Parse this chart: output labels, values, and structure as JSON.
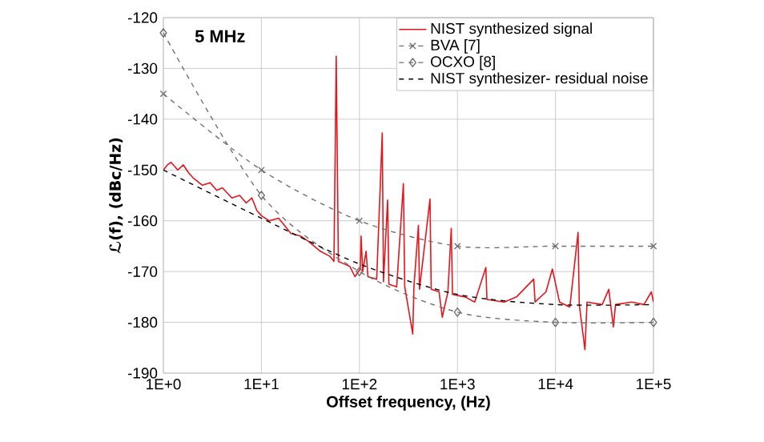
{
  "chart_data": {
    "type": "line",
    "annotations": [
      "5 MHz"
    ],
    "xlabel": "Offset frequency, (Hz)",
    "ylabel": "ℒ(f), (dBc/Hz)",
    "log": "x",
    "xlim": [
      1,
      100000
    ],
    "xticks": [
      {
        "value": 1,
        "label": "1E+0"
      },
      {
        "value": 10,
        "label": "1E+1"
      },
      {
        "value": 100,
        "label": "1E+2"
      },
      {
        "value": 1000,
        "label": "1E+3"
      },
      {
        "value": 10000,
        "label": "1E+4"
      },
      {
        "value": 100000,
        "label": "1E+5"
      }
    ],
    "ylim": [
      -190,
      -120
    ],
    "yticks": [
      -190,
      -180,
      -170,
      -160,
      -150,
      -140,
      -130,
      -120
    ],
    "grid": true,
    "legend": "top right",
    "series": [
      {
        "name": "NIST synthesized signal",
        "color": "#e8141c",
        "marker": "none",
        "line_style": "solid",
        "x": [
          1,
          1.1,
          1.2,
          1.4,
          1.6,
          1.8,
          2,
          2.5,
          3,
          3.5,
          4,
          5,
          6,
          7,
          8,
          9,
          10,
          12,
          15,
          20,
          25,
          30,
          40,
          50,
          55,
          58,
          61,
          70,
          80,
          90,
          102,
          104,
          108,
          117,
          122,
          150,
          171,
          176,
          194,
          200,
          240,
          281,
          290,
          350,
          360,
          400,
          410,
          525,
          540,
          650,
          700,
          800,
          865,
          890,
          1200,
          1500,
          1950,
          2000,
          3000,
          4000,
          6000,
          6200,
          8000,
          9300,
          11000,
          14000,
          17000,
          17500,
          20000,
          21000,
          30000,
          35000,
          39000,
          41000,
          60000,
          80000,
          95000,
          100000
        ],
        "values": [
          -150,
          -149,
          -148.5,
          -150,
          -149,
          -150.5,
          -151.5,
          -153,
          -152.5,
          -154,
          -153.5,
          -155.5,
          -155,
          -156.5,
          -155.5,
          -158,
          -159,
          -160,
          -159.5,
          -162.5,
          -163,
          -164,
          -166,
          -167,
          -168,
          -127.6,
          -168,
          -168.5,
          -169,
          -171,
          -169.5,
          -163,
          -170,
          -166,
          -171,
          -171.5,
          -142.7,
          -172,
          -155.9,
          -172.5,
          -173,
          -152.7,
          -173,
          -182.3,
          -173,
          -160.9,
          -173.5,
          -155.7,
          -173.5,
          -174,
          -179,
          -174,
          -161.5,
          -174.5,
          -175,
          -176,
          -169.2,
          -175.5,
          -176,
          -175,
          -171.5,
          -176,
          -174,
          -169.5,
          -176,
          -177,
          -162.3,
          -176.5,
          -185.4,
          -176,
          -176.5,
          -173.5,
          -180.9,
          -176.5,
          -176,
          -176.5,
          -174,
          -176
        ]
      },
      {
        "name": "BVA [7]",
        "color": "#707070",
        "marker": "cross",
        "line_style": "dashed",
        "x": [
          1,
          10,
          100,
          1000,
          10000,
          100000
        ],
        "values": [
          -135,
          -150,
          -160,
          -165,
          -165,
          -165
        ]
      },
      {
        "name": "OCXO [8]",
        "color": "#707070",
        "marker": "diamond",
        "line_style": "dashed",
        "x": [
          1,
          10,
          100,
          1000,
          10000,
          100000
        ],
        "values": [
          -123,
          -155,
          -170,
          -178,
          -180,
          -180
        ]
      },
      {
        "name": "NIST synthesizer- residual noise",
        "color": "#000000",
        "marker": "none",
        "line_style": "dashed",
        "x": [
          1,
          10,
          100,
          1000,
          10000,
          100000
        ],
        "values": [
          -150,
          -159.5,
          -168.5,
          -174.5,
          -176.5,
          -176.5
        ]
      }
    ]
  }
}
